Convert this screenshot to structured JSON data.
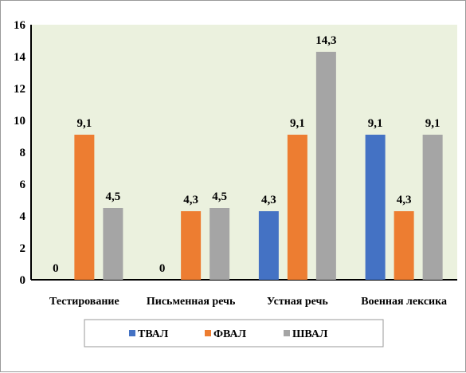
{
  "chart_data": {
    "type": "bar",
    "categories": [
      "Тестирование",
      "Письменная речь",
      "Устная речь",
      "Военная лексика"
    ],
    "series": [
      {
        "name": "ТВАЛ",
        "color": "#4472c4",
        "values": [
          0,
          0,
          4.3,
          9.1
        ],
        "labels": [
          "0",
          "0",
          "4,3",
          "9,1"
        ]
      },
      {
        "name": "ФВАЛ",
        "color": "#ed7d31",
        "values": [
          9.1,
          4.3,
          9.1,
          4.3
        ],
        "labels": [
          "9,1",
          "4,3",
          "9,1",
          "4,3"
        ]
      },
      {
        "name": "ШВАЛ",
        "color": "#a5a5a5",
        "values": [
          4.5,
          4.5,
          14.3,
          9.1
        ],
        "labels": [
          "4,5",
          "4,5",
          "14,3",
          "9,1"
        ]
      }
    ],
    "ylim": [
      0,
      16
    ],
    "yticks": [
      "0",
      "2",
      "4",
      "6",
      "8",
      "10",
      "12",
      "14",
      "16"
    ],
    "plot_background": "#ebf1de",
    "grid": false,
    "legend_position": "bottom"
  }
}
